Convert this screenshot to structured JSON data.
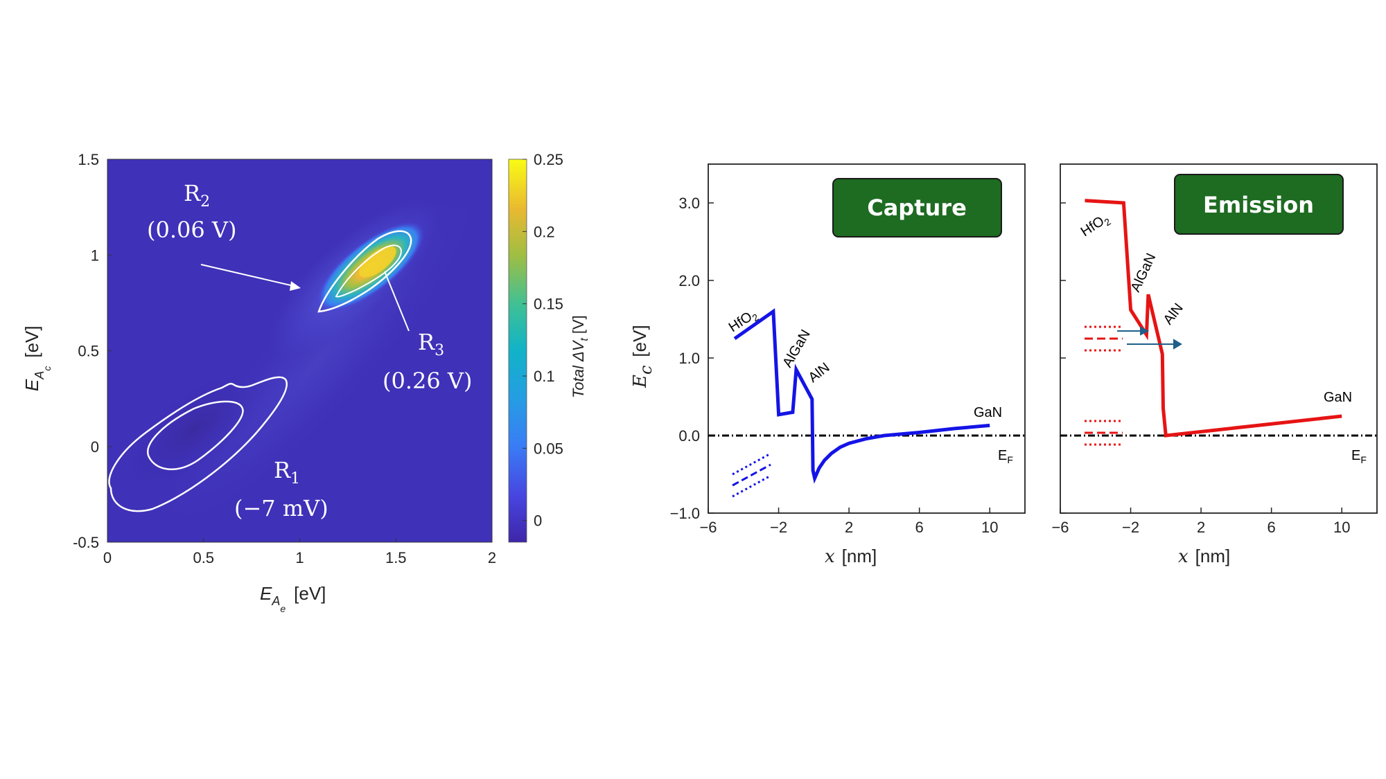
{
  "chart_data": [
    {
      "type": "heatmap",
      "xlabel": "E_{A_e} [eV]",
      "xlabel_main": "E",
      "xlabel_sub": "A",
      "xlabel_subsub": "e",
      "xlabel_unit": "[eV]",
      "ylabel_main": "E",
      "ylabel_sub": "A",
      "ylabel_subsub": "c",
      "ylabel_unit": "[eV]",
      "xlim": [
        0,
        2
      ],
      "ylim": [
        -0.5,
        1.5
      ],
      "x_ticks": [
        "0",
        "0.5",
        "1",
        "1.5",
        "2"
      ],
      "y_ticks": [
        "-0.5",
        "0",
        "0.5",
        "1",
        "1.5"
      ],
      "colorbar": {
        "label": "Total ΔV_t [V]",
        "label_main": "Total ΔV",
        "label_sub": "t",
        "label_unit": "[V]",
        "range": [
          -0.015,
          0.25
        ],
        "ticks": [
          "0",
          "0.05",
          "0.1",
          "0.15",
          "0.2",
          "0.25"
        ],
        "colormap": "parula"
      },
      "background_color": "#3F31B8",
      "regions": [
        {
          "name": "R",
          "sub": "1",
          "value": "(−7 mV)",
          "center": [
            0.45,
            -0.05
          ],
          "peak": -0.007
        },
        {
          "name": "R",
          "sub": "2",
          "value": "(0.06 V)",
          "center": [
            1.1,
            0.8
          ],
          "peak": 0.06
        },
        {
          "name": "R",
          "sub": "3",
          "value": "(0.26 V)",
          "center": [
            1.42,
            0.93
          ],
          "peak": 0.26
        }
      ]
    },
    {
      "type": "line",
      "title": "Capture",
      "ylabel_main": "E",
      "ylabel_sub": "c",
      "ylabel_unit": "[eV]",
      "xlabel_main": "x",
      "xlabel_unit": "[nm]",
      "xlim": [
        -6,
        12
      ],
      "ylim": [
        -1.0,
        3.5
      ],
      "x_ticks": [
        "−6",
        "−2",
        "2",
        "6",
        "10"
      ],
      "y_ticks": [
        "−1.0",
        "0.0",
        "1.0",
        "2.0",
        "3.0"
      ],
      "series": [
        {
          "color": "#1414E6",
          "x": [
            -4.5,
            -2.3,
            -2.0,
            -1.2,
            -1.0,
            -0.1,
            -0.05,
            0.05,
            0.3,
            0.6,
            1.0,
            1.5,
            2.0,
            3.0,
            4.0,
            5.0,
            6.0,
            8.0,
            10.0
          ],
          "y": [
            1.25,
            1.6,
            0.27,
            0.3,
            0.85,
            0.47,
            -0.45,
            -0.55,
            -0.42,
            -0.32,
            -0.23,
            -0.15,
            -0.1,
            -0.04,
            0.0,
            0.02,
            0.04,
            0.09,
            0.13
          ]
        }
      ],
      "layer_labels": [
        "HfO2",
        "AlGaN",
        "AlN",
        "GaN"
      ],
      "fermi_label": "E",
      "fermi_sub": "F",
      "fermi_level": 0.0
    },
    {
      "type": "line",
      "title": "Emission",
      "xlabel_main": "x",
      "xlabel_unit": "[nm]",
      "xlim": [
        -6,
        12
      ],
      "ylim": [
        -1.0,
        3.5
      ],
      "x_ticks": [
        "−6",
        "−2",
        "2",
        "6",
        "10"
      ],
      "series": [
        {
          "color": "#E61414",
          "x": [
            -4.6,
            -2.4,
            -2.0,
            -1.1,
            -1.0,
            -0.2,
            -0.15,
            0.0,
            10.0
          ],
          "y": [
            3.03,
            3.0,
            1.62,
            1.3,
            1.82,
            1.05,
            0.35,
            0.0,
            0.25
          ]
        }
      ],
      "layer_labels": [
        "HfO2",
        "AlGaN",
        "AlN",
        "GaN"
      ],
      "fermi_label": "E",
      "fermi_sub": "F",
      "fermi_level": 0.0
    }
  ]
}
